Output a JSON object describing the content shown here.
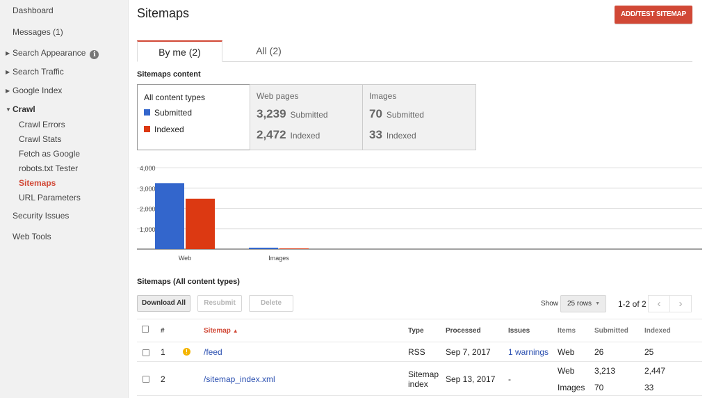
{
  "sidebar": {
    "dashboard": "Dashboard",
    "messages": "Messages (1)",
    "search_appearance": "Search Appearance",
    "search_traffic": "Search Traffic",
    "google_index": "Google Index",
    "crawl": "Crawl",
    "crawl_items": [
      "Crawl Errors",
      "Crawl Stats",
      "Fetch as Google",
      "robots.txt Tester",
      "Sitemaps",
      "URL Parameters"
    ],
    "security_issues": "Security Issues",
    "web_tools": "Web Tools"
  },
  "header": {
    "title": "Sitemaps",
    "add_button": "ADD/TEST SITEMAP"
  },
  "tabs": [
    {
      "label": "By me (2)",
      "active": true
    },
    {
      "label": "All (2)",
      "active": false
    }
  ],
  "content": {
    "heading": "Sitemaps content",
    "all_types": "All content types",
    "legend_submitted": "Submitted",
    "legend_indexed": "Indexed",
    "web": {
      "title": "Web pages",
      "submitted_num": "3,239",
      "submitted_label": "Submitted",
      "indexed_num": "2,472",
      "indexed_label": "Indexed"
    },
    "images": {
      "title": "Images",
      "submitted_num": "70",
      "submitted_label": "Submitted",
      "indexed_num": "33",
      "indexed_label": "Indexed"
    }
  },
  "colors": {
    "submitted": "#3366cc",
    "indexed": "#dc3912",
    "accent": "#d14836"
  },
  "chart_data": {
    "type": "bar",
    "categories": [
      "Web",
      "Images"
    ],
    "series": [
      {
        "name": "Submitted",
        "values": [
          3239,
          70
        ]
      },
      {
        "name": "Indexed",
        "values": [
          2472,
          33
        ]
      }
    ],
    "yticks": [
      "1,000",
      "2,000",
      "3,000",
      "4,000"
    ],
    "ylim": [
      0,
      4000
    ],
    "grid": true,
    "legend": "none"
  },
  "table": {
    "heading": "Sitemaps (All content types)",
    "buttons": {
      "download": "Download All",
      "resubmit": "Resubmit",
      "delete": "Delete"
    },
    "show_label": "Show",
    "rows_select": "25 rows",
    "pager_text": "1-2 of 2",
    "columns": {
      "num": "#",
      "sitemap": "Sitemap",
      "sort_indicator": "▲",
      "type": "Type",
      "processed": "Processed",
      "issues": "Issues",
      "items": "Items",
      "submitted": "Submitted",
      "indexed": "Indexed"
    },
    "rows": [
      {
        "num": "1",
        "sitemap": "/feed",
        "has_warning": true,
        "type": "RSS",
        "processed": "Sep 7, 2017",
        "issues": "1 warnings",
        "items": [
          {
            "item": "Web",
            "submitted": "26",
            "indexed": "25"
          }
        ]
      },
      {
        "num": "2",
        "sitemap": "/sitemap_index.xml",
        "has_warning": false,
        "type_line1": "Sitemap",
        "type_line2": "index",
        "processed": "Sep 13, 2017",
        "issues": "-",
        "items": [
          {
            "item": "Web",
            "submitted": "3,213",
            "indexed": "2,447"
          },
          {
            "item": "Images",
            "submitted": "70",
            "indexed": "33"
          }
        ]
      }
    ]
  }
}
